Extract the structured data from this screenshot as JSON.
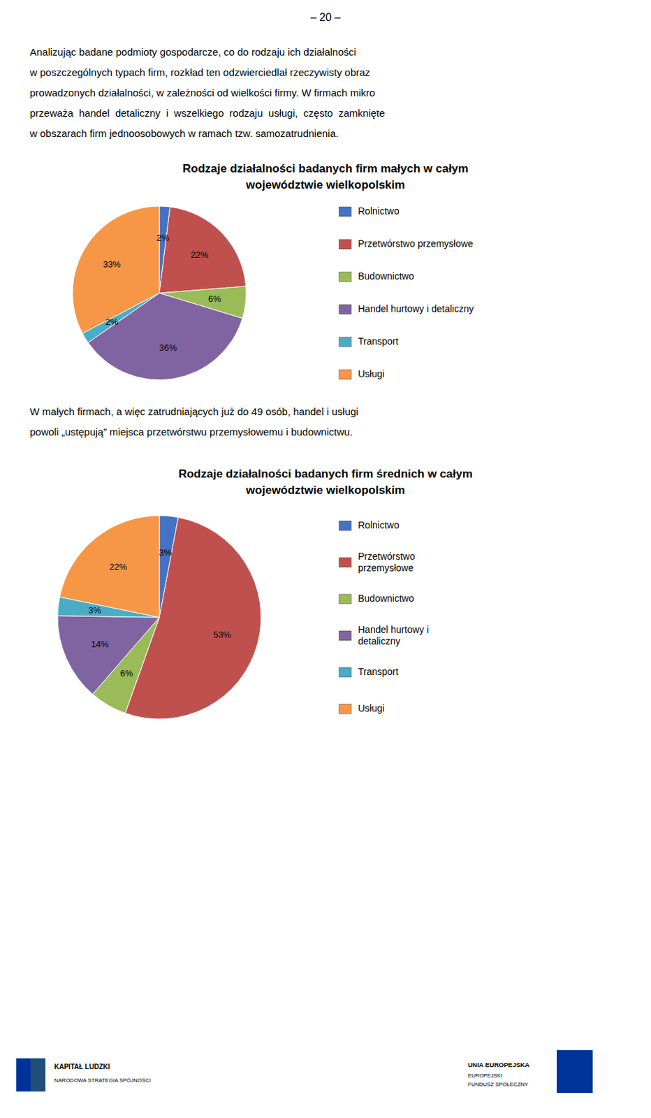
{
  "page_header": "– 20 –",
  "intro_lines": [
    "Analizując badane podmioty gospodarcze, co do rodzaju ich działalności",
    "w poszczególnych typach firm, rozkład ten odzwierciedlał rzeczywisty obraz",
    "prowadzonych działalności, w zależności od wielkości firmy. W firmach mikro",
    "przeważa  handel  detaliczny  i  wszelkiego  rodzaju  usługi,  często  zamknięte",
    "w obszarach firm jednoosobowych w ramach tzw. samozatrudnienia."
  ],
  "middle_lines": [
    "W małych firmach, a więc zatrudniających już do 49 osób, handel i usługi",
    "powoli „ustępują” miejsca przetwórstwu przemysłowemu i budownictwu."
  ],
  "footer": [
    "KAPITAŁ LUDZKI",
    "NARODOWA STRATEGIA SPÓJNOŚCI",
    "UNIA EUROPEJSKA",
    "EUROPEJSKI",
    "FUNDUSZ SPOŁECZNY"
  ],
  "chart_data": [
    {
      "type": "pie",
      "title": "Rodzaje działalności badanych firm małych w całym\nwojewództwie wielkopolskim",
      "categories": [
        "Rolnictwo",
        "Przetwórstwo przemysłowe",
        "Budownictwo",
        "Handel hurtowy i detaliczny",
        "Transport",
        "Usługi"
      ],
      "values": [
        2,
        22,
        6,
        36,
        2,
        33
      ],
      "value_labels": [
        "2%",
        "22%",
        "6%",
        "36%",
        "2%",
        "33%"
      ],
      "colors": [
        "#4472C4",
        "#C0504D",
        "#9BBB59",
        "#8064A2",
        "#4BACC6",
        "#F79646"
      ],
      "data_labels": true,
      "legend": "right"
    },
    {
      "type": "pie",
      "title": "Rodzaje działalności badanych firm średnich w całym\nwojewództwie wielkopolskim",
      "categories": [
        "Rolnictwo",
        "Przetwórstwo\nprzemysłowe",
        "Budownictwo",
        "Handel hurtowy i\ndetaliczny",
        "Transport",
        "Usługi"
      ],
      "values": [
        3,
        53,
        6,
        14,
        3,
        22
      ],
      "value_labels": [
        "3%",
        "53%",
        "6%",
        "14%",
        "3%",
        "22%"
      ],
      "colors": [
        "#4472C4",
        "#C0504D",
        "#9BBB59",
        "#8064A2",
        "#4BACC6",
        "#F79646"
      ],
      "data_labels": true,
      "legend": "right"
    }
  ]
}
